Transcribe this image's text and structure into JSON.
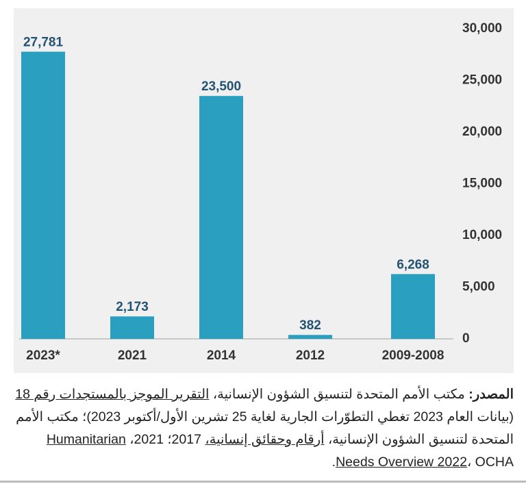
{
  "chart_data": {
    "type": "bar",
    "categories": [
      "2023*",
      "2021",
      "2014",
      "2012",
      "2009-2008"
    ],
    "values": [
      27781,
      2173,
      23500,
      382,
      6268
    ],
    "value_labels": [
      "27,781",
      "2,173",
      "23,500",
      "382",
      "6,268"
    ],
    "color": "#2a9fc0",
    "ylim": [
      0,
      30000
    ],
    "yticks": [
      0,
      {
        "value": 5000,
        "label": "5,000"
      },
      {
        "value": 10000,
        "label": "10,000"
      },
      {
        "value": 15000,
        "label": "15,000"
      },
      {
        "value": 20000,
        "label": "20,000"
      },
      {
        "value": 25000,
        "label": "25,000"
      },
      {
        "value": 30000,
        "label": "30,000"
      }
    ],
    "grid": false
  },
  "source": {
    "label": "المصدر:",
    "parts": [
      {
        "text": " مكتب الأمم المتحدة لتنسيق الشؤون الإنسانية، ",
        "underline": false
      },
      {
        "text": "التقرير الموجز بالمستجدات رقم 18",
        "underline": true
      },
      {
        "text": " (بيانات العام 2023 تغطي التطوّرات الجارية لغاية 25 تشرين الأول/أكتوبر 2023)؛ مكتب الأمم المتحدة لتنسيق الشؤون الإنسانية، ",
        "underline": false
      },
      {
        "text": "أرقام وحقائق إنسانية،",
        "underline": true
      },
      {
        "text": " 2017؛ 2021، ",
        "underline": false
      },
      {
        "text": "Humanitarian Needs Overview 2022",
        "underline": true
      },
      {
        "text": "، OCHA.",
        "underline": false
      }
    ]
  }
}
